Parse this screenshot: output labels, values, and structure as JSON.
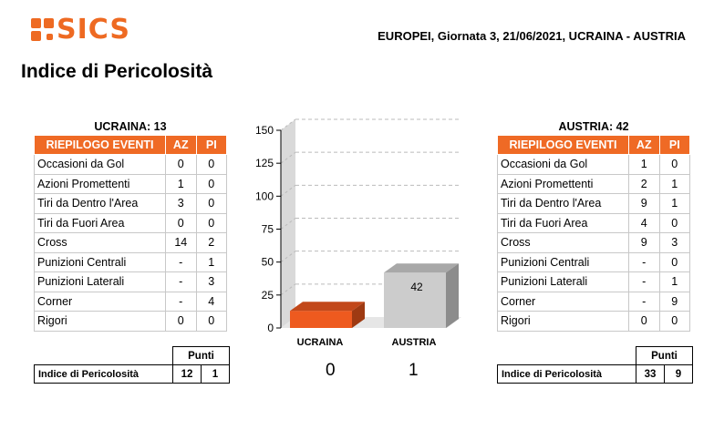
{
  "brand": "SICS",
  "header": {
    "match_info": "EUROPEI, Giornata 3, 21/06/2021, UCRAINA - AUSTRIA"
  },
  "page_title": "Indice di Pericolosità",
  "colors": {
    "accent": "#ee6a22",
    "ukraine_bar": "#ee5a1f",
    "austria_bar": "#cccccc"
  },
  "table_headers": {
    "events": "RIEPILOGO EVENTI",
    "az": "AZ",
    "pi": "PI",
    "punti": "Punti",
    "index_label": "Indice di Pericolosità"
  },
  "home": {
    "title": "UCRAINA: 13",
    "rows": [
      {
        "label": "Occasioni da Gol",
        "az": "0",
        "pi": "0"
      },
      {
        "label": "Azioni Promettenti",
        "az": "1",
        "pi": "0"
      },
      {
        "label": "Tiri da Dentro l'Area",
        "az": "3",
        "pi": "0"
      },
      {
        "label": "Tiri da Fuori Area",
        "az": "0",
        "pi": "0"
      },
      {
        "label": "Cross",
        "az": "14",
        "pi": "2"
      },
      {
        "label": "Punizioni Centrali",
        "az": "-",
        "pi": "1"
      },
      {
        "label": "Punizioni Laterali",
        "az": "-",
        "pi": "3"
      },
      {
        "label": "Corner",
        "az": "-",
        "pi": "4"
      },
      {
        "label": "Rigori",
        "az": "0",
        "pi": "0"
      }
    ],
    "index_az": "12",
    "index_pi": "1"
  },
  "away": {
    "title": "AUSTRIA: 42",
    "rows": [
      {
        "label": "Occasioni da Gol",
        "az": "1",
        "pi": "0"
      },
      {
        "label": "Azioni Promettenti",
        "az": "2",
        "pi": "1"
      },
      {
        "label": "Tiri da Dentro l'Area",
        "az": "9",
        "pi": "1"
      },
      {
        "label": "Tiri da Fuori Area",
        "az": "4",
        "pi": "0"
      },
      {
        "label": "Cross",
        "az": "9",
        "pi": "3"
      },
      {
        "label": "Punizioni Centrali",
        "az": "-",
        "pi": "0"
      },
      {
        "label": "Punizioni Laterali",
        "az": "-",
        "pi": "1"
      },
      {
        "label": "Corner",
        "az": "-",
        "pi": "9"
      },
      {
        "label": "Rigori",
        "az": "0",
        "pi": "0"
      }
    ],
    "index_az": "33",
    "index_pi": "9"
  },
  "chart_data": {
    "type": "bar",
    "categories": [
      "UCRAINA",
      "AUSTRIA"
    ],
    "values": [
      13,
      42
    ],
    "data_labels": [
      "",
      "42"
    ],
    "ylim": [
      0,
      150
    ],
    "yticks": [
      "0",
      "25",
      "50",
      "75",
      "100",
      "125",
      "150"
    ],
    "grid": true,
    "style": "3d"
  },
  "scores": {
    "home": "0",
    "away": "1"
  }
}
